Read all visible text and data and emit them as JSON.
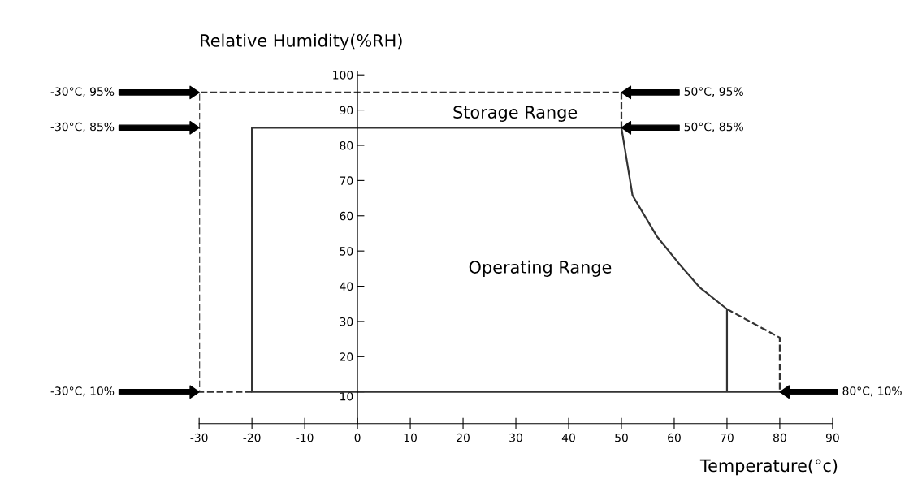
{
  "chart_data": {
    "type": "line",
    "xlabel": "Temperature(°c)",
    "ylabel": "Relative Humidity(%RH)",
    "xlim": [
      -30,
      90
    ],
    "xticks": [
      -30,
      -20,
      -10,
      0,
      10,
      20,
      30,
      40,
      50,
      60,
      70,
      80,
      90
    ],
    "ylim": [
      1,
      101
    ],
    "yticks": [
      10,
      20,
      30,
      40,
      50,
      60,
      70,
      80,
      90,
      100
    ],
    "grid": false,
    "series": [
      {
        "line_style": "dashed",
        "color": "#333333",
        "x": [
          -20,
          -30,
          -30,
          50,
          50
        ],
        "values": [
          10,
          10,
          95,
          95,
          85
        ]
      },
      {
        "line_style": "dashed",
        "color": "#333333",
        "x": [
          70,
          80,
          80
        ],
        "values": [
          33.5,
          25.4,
          10
        ]
      },
      {
        "line_style": "solid",
        "color": "#333333",
        "x": [
          80,
          -20,
          -20,
          50,
          52.1,
          56.7,
          60.8,
          64.8,
          70,
          70
        ],
        "values": [
          10,
          10,
          85,
          85,
          65.8,
          54.2,
          46.6,
          39.7,
          33.5,
          10
        ]
      }
    ],
    "annotations": [
      "Storage Range",
      "Operating Range",
      "-30°C, 95%",
      "-30°C, 85%",
      "-30°C, 10%",
      "50°C, 95%",
      "50°C, 85%",
      "80°C, 10%"
    ]
  }
}
